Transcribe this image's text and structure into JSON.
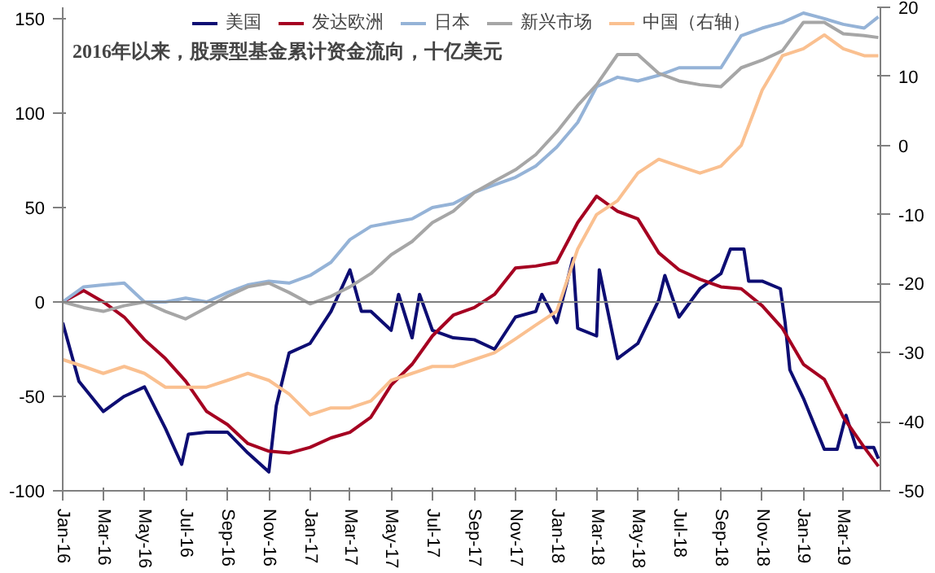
{
  "chart_data": {
    "type": "line",
    "title": "2016年以来，股票型基金累计资金流向，十亿美元",
    "xlim": [
      "2016-01-01",
      "2019-04-25"
    ],
    "xticks": [
      {
        "value": "2016-01",
        "label": "Jan-16"
      },
      {
        "value": "2016-03",
        "label": "Mar-16"
      },
      {
        "value": "2016-05",
        "label": "May-16"
      },
      {
        "value": "2016-07",
        "label": "Jul-16"
      },
      {
        "value": "2016-09",
        "label": "Sep-16"
      },
      {
        "value": "2016-11",
        "label": "Nov-16"
      },
      {
        "value": "2017-01",
        "label": "Jan-17"
      },
      {
        "value": "2017-03",
        "label": "Mar-17"
      },
      {
        "value": "2017-05",
        "label": "May-17"
      },
      {
        "value": "2017-07",
        "label": "Jul-17"
      },
      {
        "value": "2017-09",
        "label": "Sep-17"
      },
      {
        "value": "2017-11",
        "label": "Nov-17"
      },
      {
        "value": "2018-01",
        "label": "Jan-18"
      },
      {
        "value": "2018-03",
        "label": "Mar-18"
      },
      {
        "value": "2018-05",
        "label": "May-18"
      },
      {
        "value": "2018-07",
        "label": "Jul-18"
      },
      {
        "value": "2018-09",
        "label": "Sep-18"
      },
      {
        "value": "2018-11",
        "label": "Nov-18"
      },
      {
        "value": "2019-01",
        "label": "Jan-19"
      },
      {
        "value": "2019-03",
        "label": "Mar-19"
      }
    ],
    "ylim": [
      -100,
      156
    ],
    "yticks": [
      -100,
      -50,
      0,
      50,
      100,
      150
    ],
    "y2lim": [
      -50,
      20
    ],
    "y2ticks": [
      -50,
      -40,
      -30,
      -20,
      -10,
      0,
      10,
      20
    ],
    "x": [
      "2016-01-01",
      "2016-02-01",
      "2016-03-01",
      "2016-04-01",
      "2016-05-01",
      "2016-06-01",
      "2016-07-01",
      "2016-08-01",
      "2016-09-01",
      "2016-10-01",
      "2016-11-01",
      "2016-12-01",
      "2017-01-01",
      "2017-02-01",
      "2017-03-01",
      "2017-04-01",
      "2017-05-01",
      "2017-06-01",
      "2017-07-01",
      "2017-08-01",
      "2017-09-01",
      "2017-10-01",
      "2017-11-01",
      "2017-12-01",
      "2018-01-01",
      "2018-02-01",
      "2018-03-01",
      "2018-04-01",
      "2018-05-01",
      "2018-06-01",
      "2018-07-01",
      "2018-08-01",
      "2018-09-01",
      "2018-10-01",
      "2018-11-01",
      "2018-12-01",
      "2019-01-01",
      "2019-02-01",
      "2019-03-01",
      "2019-04-01",
      "2019-04-22"
    ],
    "series": [
      {
        "name": "美国",
        "color": "#0d0d73",
        "x": [
          "2016-01-01",
          "2016-01-25",
          "2016-03-01",
          "2016-04-01",
          "2016-05-01",
          "2016-06-01",
          "2016-06-25",
          "2016-07-05",
          "2016-08-01",
          "2016-09-01",
          "2016-10-01",
          "2016-11-01",
          "2016-11-12",
          "2016-12-01",
          "2017-01-01",
          "2017-02-01",
          "2017-03-01",
          "2017-03-18",
          "2017-04-01",
          "2017-05-01",
          "2017-05-12",
          "2017-06-01",
          "2017-06-12",
          "2017-07-01",
          "2017-08-01",
          "2017-09-01",
          "2017-10-01",
          "2017-11-01",
          "2017-12-01",
          "2017-12-10",
          "2018-01-01",
          "2018-01-25",
          "2018-02-01",
          "2018-03-01",
          "2018-03-05",
          "2018-04-01",
          "2018-05-01",
          "2018-06-01",
          "2018-06-10",
          "2018-07-01",
          "2018-08-01",
          "2018-09-01",
          "2018-09-15",
          "2018-10-05",
          "2018-10-12",
          "2018-11-01",
          "2018-11-28",
          "2018-12-05",
          "2018-12-12",
          "2019-01-01",
          "2019-02-01",
          "2019-02-20",
          "2019-03-05",
          "2019-03-20",
          "2019-04-15",
          "2019-04-22"
        ],
        "values": [
          -11,
          -42,
          -58,
          -50,
          -45,
          -67,
          -86,
          -70,
          -69,
          -69,
          -80,
          -90,
          -55,
          -27,
          -22,
          -5,
          17,
          -5,
          -5,
          -15,
          4,
          -19,
          4,
          -15,
          -19,
          -20,
          -25,
          -8,
          -5,
          4,
          -11,
          23,
          -14,
          -18,
          17,
          -30,
          -22,
          1,
          14,
          -8,
          7,
          15,
          28,
          28,
          11,
          11,
          7,
          -11,
          -36,
          -51,
          -78,
          -78,
          -60,
          -77,
          -77,
          -83
        ]
      },
      {
        "name": "发达欧洲",
        "color": "#a50021",
        "values": [
          0,
          6,
          0,
          -8,
          -20,
          -30,
          -42,
          -58,
          -65,
          -75,
          -79,
          -80,
          -77,
          -72,
          -69,
          -61,
          -44,
          -33,
          -18,
          -7,
          -3,
          4,
          18,
          19,
          21,
          42,
          56,
          48,
          44,
          26,
          17,
          12,
          8,
          7,
          -2,
          -14,
          -33,
          -41,
          -61,
          -77,
          -87
        ]
      },
      {
        "name": "日本",
        "color": "#95b3d7",
        "values": [
          0,
          8,
          9,
          10,
          0,
          0,
          2,
          0,
          5,
          9,
          11,
          10,
          14,
          21,
          33,
          40,
          42,
          44,
          50,
          52,
          58,
          62,
          66,
          72,
          82,
          95,
          114,
          119,
          117,
          120,
          124,
          124,
          124,
          141,
          145,
          148,
          153,
          150,
          147,
          145,
          151
        ]
      },
      {
        "name": "新兴市场",
        "color": "#a6a6a6",
        "values": [
          0,
          -3,
          -5,
          -2,
          0,
          -5,
          -9,
          -3,
          3,
          8,
          10,
          5,
          -1,
          3,
          8,
          15,
          25,
          32,
          42,
          48,
          58,
          64,
          70,
          78,
          90,
          104,
          115,
          131,
          131,
          121,
          117,
          115,
          114,
          124,
          128,
          133,
          148,
          148,
          142,
          141,
          140
        ]
      },
      {
        "name": "中国（右轴）",
        "color": "#fac090",
        "axis": "y2",
        "values": [
          -31,
          -32,
          -33,
          -32,
          -33,
          -35,
          -35,
          -35,
          -34,
          -33,
          -34,
          -36,
          -39,
          -38,
          -38,
          -37,
          -34,
          -33,
          -32,
          -32,
          -31,
          -30,
          -28,
          -26,
          -24,
          -15,
          -10,
          -8,
          -4,
          -2,
          -3,
          -4,
          -3,
          0,
          8,
          13,
          14,
          16,
          14,
          13,
          13
        ]
      }
    ],
    "ref_lines": [
      {
        "axis": "y",
        "value": 0,
        "color": "#808080"
      }
    ],
    "legend": "top",
    "grid": false,
    "line_style": "solid",
    "marker": "none"
  }
}
